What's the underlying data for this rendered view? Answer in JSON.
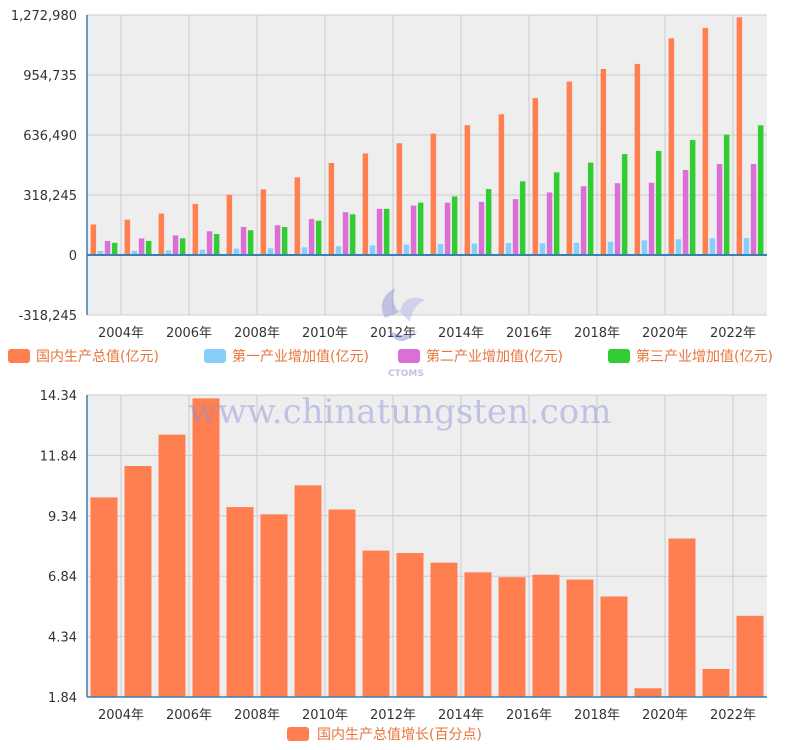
{
  "colors": {
    "gdp": "#ff7f50",
    "primary": "#87cefa",
    "secondary": "#da70d6",
    "tertiary": "#32cd32",
    "growth": "#ff7f50",
    "plot_bg": "#eeeeee",
    "grid": "#cccccc",
    "axis": "#3c7fb1",
    "legend_text": "#e8743b"
  },
  "watermark": {
    "text": "www.chinatungsten.com",
    "logo_text": "CTOMS"
  },
  "chart_data": [
    {
      "type": "bar",
      "categories": [
        "2004年",
        "2005年",
        "2006年",
        "2007年",
        "2008年",
        "2009年",
        "2010年",
        "2011年",
        "2012年",
        "2013年",
        "2014年",
        "2015年",
        "2016年",
        "2017年",
        "2018年",
        "2019年",
        "2020年",
        "2021年",
        "2022年",
        "2023年"
      ],
      "x_tick_labels": [
        "2004年",
        "2006年",
        "2008年",
        "2010年",
        "2012年",
        "2014年",
        "2016年",
        "2018年",
        "2020年",
        "2022年"
      ],
      "y_tick_labels": [
        "1,272,980",
        "954,735",
        "636,490",
        "318,245",
        "0",
        "-318,245"
      ],
      "ylim": [
        -318245,
        1272980
      ],
      "grid": true,
      "legend_position": "bottom",
      "series": [
        {
          "name": "国内生产总值(亿元)",
          "key": "gdp",
          "values": [
            161840,
            187319,
            219439,
            270092,
            319245,
            348518,
            412119,
            487940,
            538580,
            592963,
            643563,
            688858,
            746395,
            832036,
            919281,
            986515,
            1013567,
            1149237,
            1204724,
            1260582
          ]
        },
        {
          "name": "第一产业增加值(亿元)",
          "key": "primary",
          "values": [
            21413,
            22420,
            24040,
            28627,
            33702,
            35226,
            40533,
            46163,
            50902,
            55329,
            58344,
            60870,
            63671,
            62100,
            64745,
            70474,
            77754,
            83086,
            88345,
            89755
          ]
        },
        {
          "name": "第二产业增加值(亿元)",
          "key": "secondary",
          "values": [
            73904,
            87598,
            103720,
            125831,
            149003,
            157639,
            191626,
            227038,
            244643,
            261956,
            277572,
            282040,
            296547,
            331581,
            364835,
            380671,
            383562,
            450904,
            483164,
            482589
          ]
        },
        {
          "name": "第三产业增加值(亿元)",
          "key": "tertiary",
          "values": [
            64561,
            74919,
            88555,
            111352,
            131340,
            148038,
            182038,
            216099,
            244856,
            277983,
            310654,
            349745,
            390828,
            438356,
            489701,
            535371,
            551974,
            609680,
            638698,
            688238
          ]
        }
      ]
    },
    {
      "type": "bar",
      "categories": [
        "2004年",
        "2005年",
        "2006年",
        "2007年",
        "2008年",
        "2009年",
        "2010年",
        "2011年",
        "2012年",
        "2013年",
        "2014年",
        "2015年",
        "2016年",
        "2017年",
        "2018年",
        "2019年",
        "2020年",
        "2021年",
        "2022年",
        "2023年"
      ],
      "x_tick_labels": [
        "2004年",
        "2006年",
        "2008年",
        "2010年",
        "2012年",
        "2014年",
        "2016年",
        "2018年",
        "2020年",
        "2022年"
      ],
      "y_tick_labels": [
        "14.34",
        "11.84",
        "9.34",
        "6.84",
        "4.34",
        "1.84"
      ],
      "ylim": [
        1.84,
        14.34
      ],
      "grid": true,
      "legend_position": "bottom",
      "series": [
        {
          "name": "国内生产总值增长(百分点)",
          "key": "growth",
          "values": [
            10.1,
            11.4,
            12.7,
            14.2,
            9.7,
            9.4,
            10.6,
            9.6,
            7.9,
            7.8,
            7.4,
            7.0,
            6.8,
            6.9,
            6.7,
            6.0,
            2.2,
            8.4,
            3.0,
            5.2
          ]
        }
      ]
    }
  ]
}
